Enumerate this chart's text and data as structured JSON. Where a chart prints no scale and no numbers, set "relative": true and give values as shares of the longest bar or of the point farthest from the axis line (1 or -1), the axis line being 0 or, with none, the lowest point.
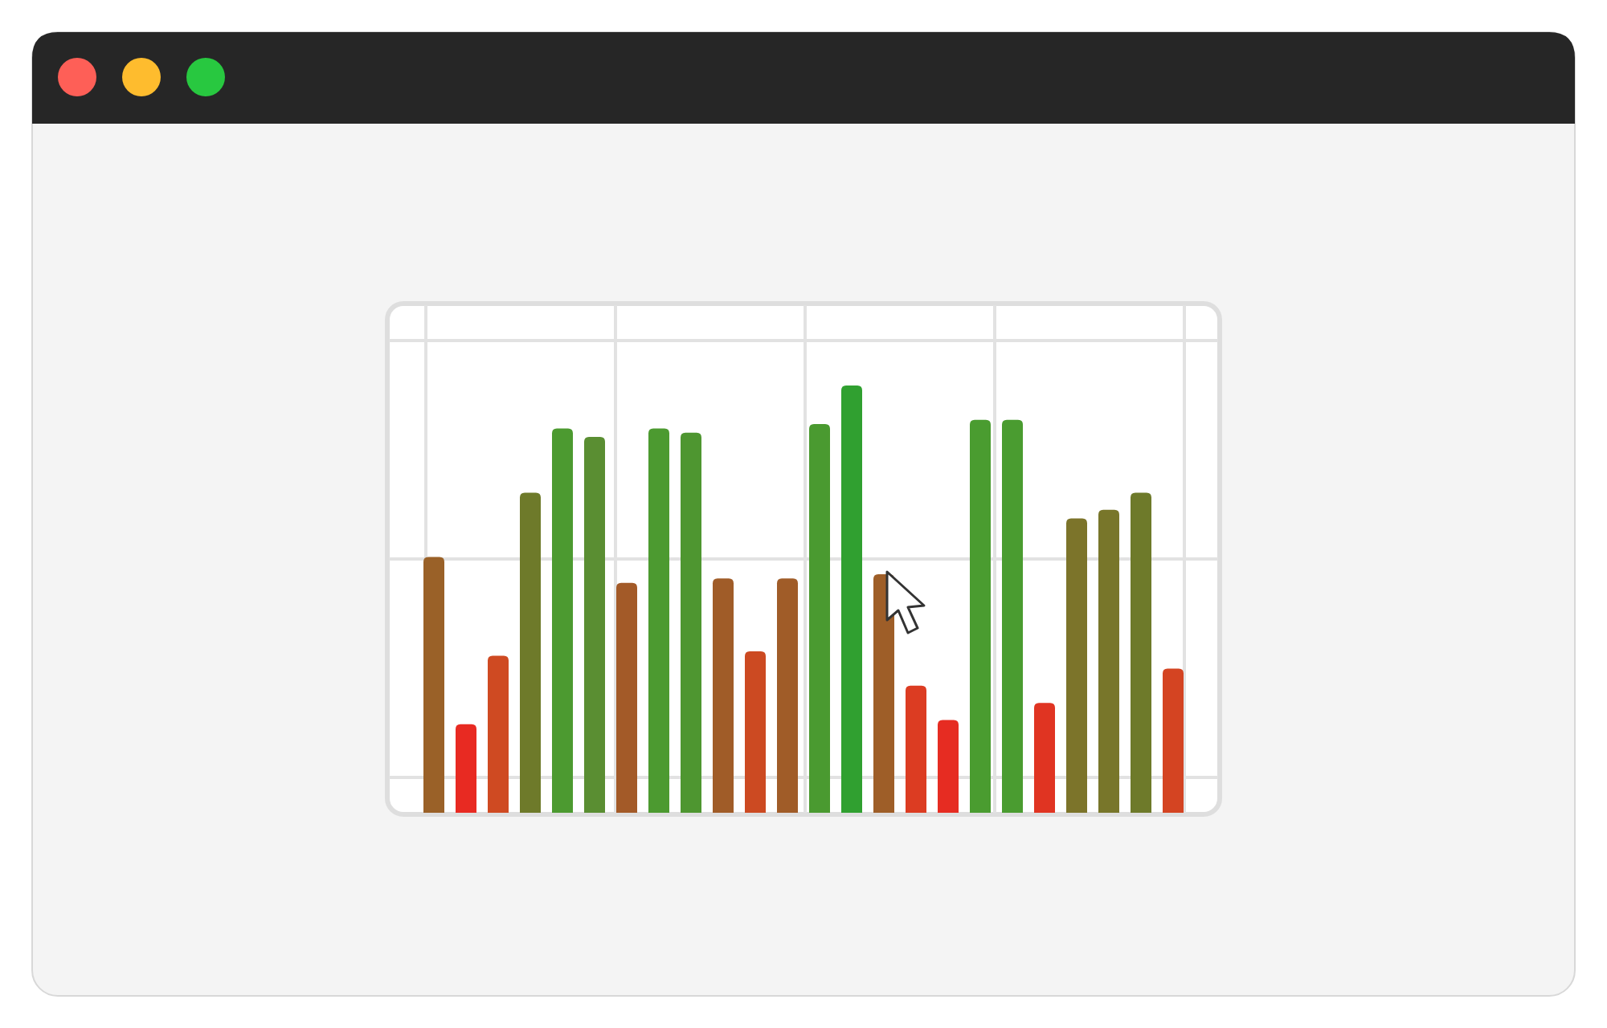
{
  "chart_data": {
    "type": "bar",
    "relative": true,
    "grid": true,
    "categories": [
      null,
      null,
      null,
      null,
      null,
      null,
      null,
      null,
      null,
      null,
      null,
      null,
      null,
      null,
      null,
      null,
      null,
      null,
      null,
      null,
      null,
      null,
      null,
      null
    ],
    "values": [
      0.6,
      0.21,
      0.37,
      0.75,
      0.9,
      0.88,
      0.54,
      0.9,
      0.89,
      0.55,
      0.38,
      0.55,
      0.91,
      1,
      0.56,
      0.3,
      0.22,
      0.92,
      0.92,
      0.26,
      0.69,
      0.71,
      0.75,
      0.34
    ],
    "colors": [
      "#9a6128",
      "#e82a22",
      "#cf4a22",
      "#6e7a2a",
      "#4c9a30",
      "#5a8e32",
      "#a35a28",
      "#4c9a30",
      "#4e9630",
      "#a05c28",
      "#cc4a22",
      "#a05c28",
      "#4a9a30",
      "#30a030",
      "#9e5e28",
      "#dc3c22",
      "#e62c22",
      "#4a9c30",
      "#4a9c30",
      "#e03422",
      "#7c742a",
      "#78762a",
      "#6e7a2a",
      "#d44422"
    ]
  }
}
